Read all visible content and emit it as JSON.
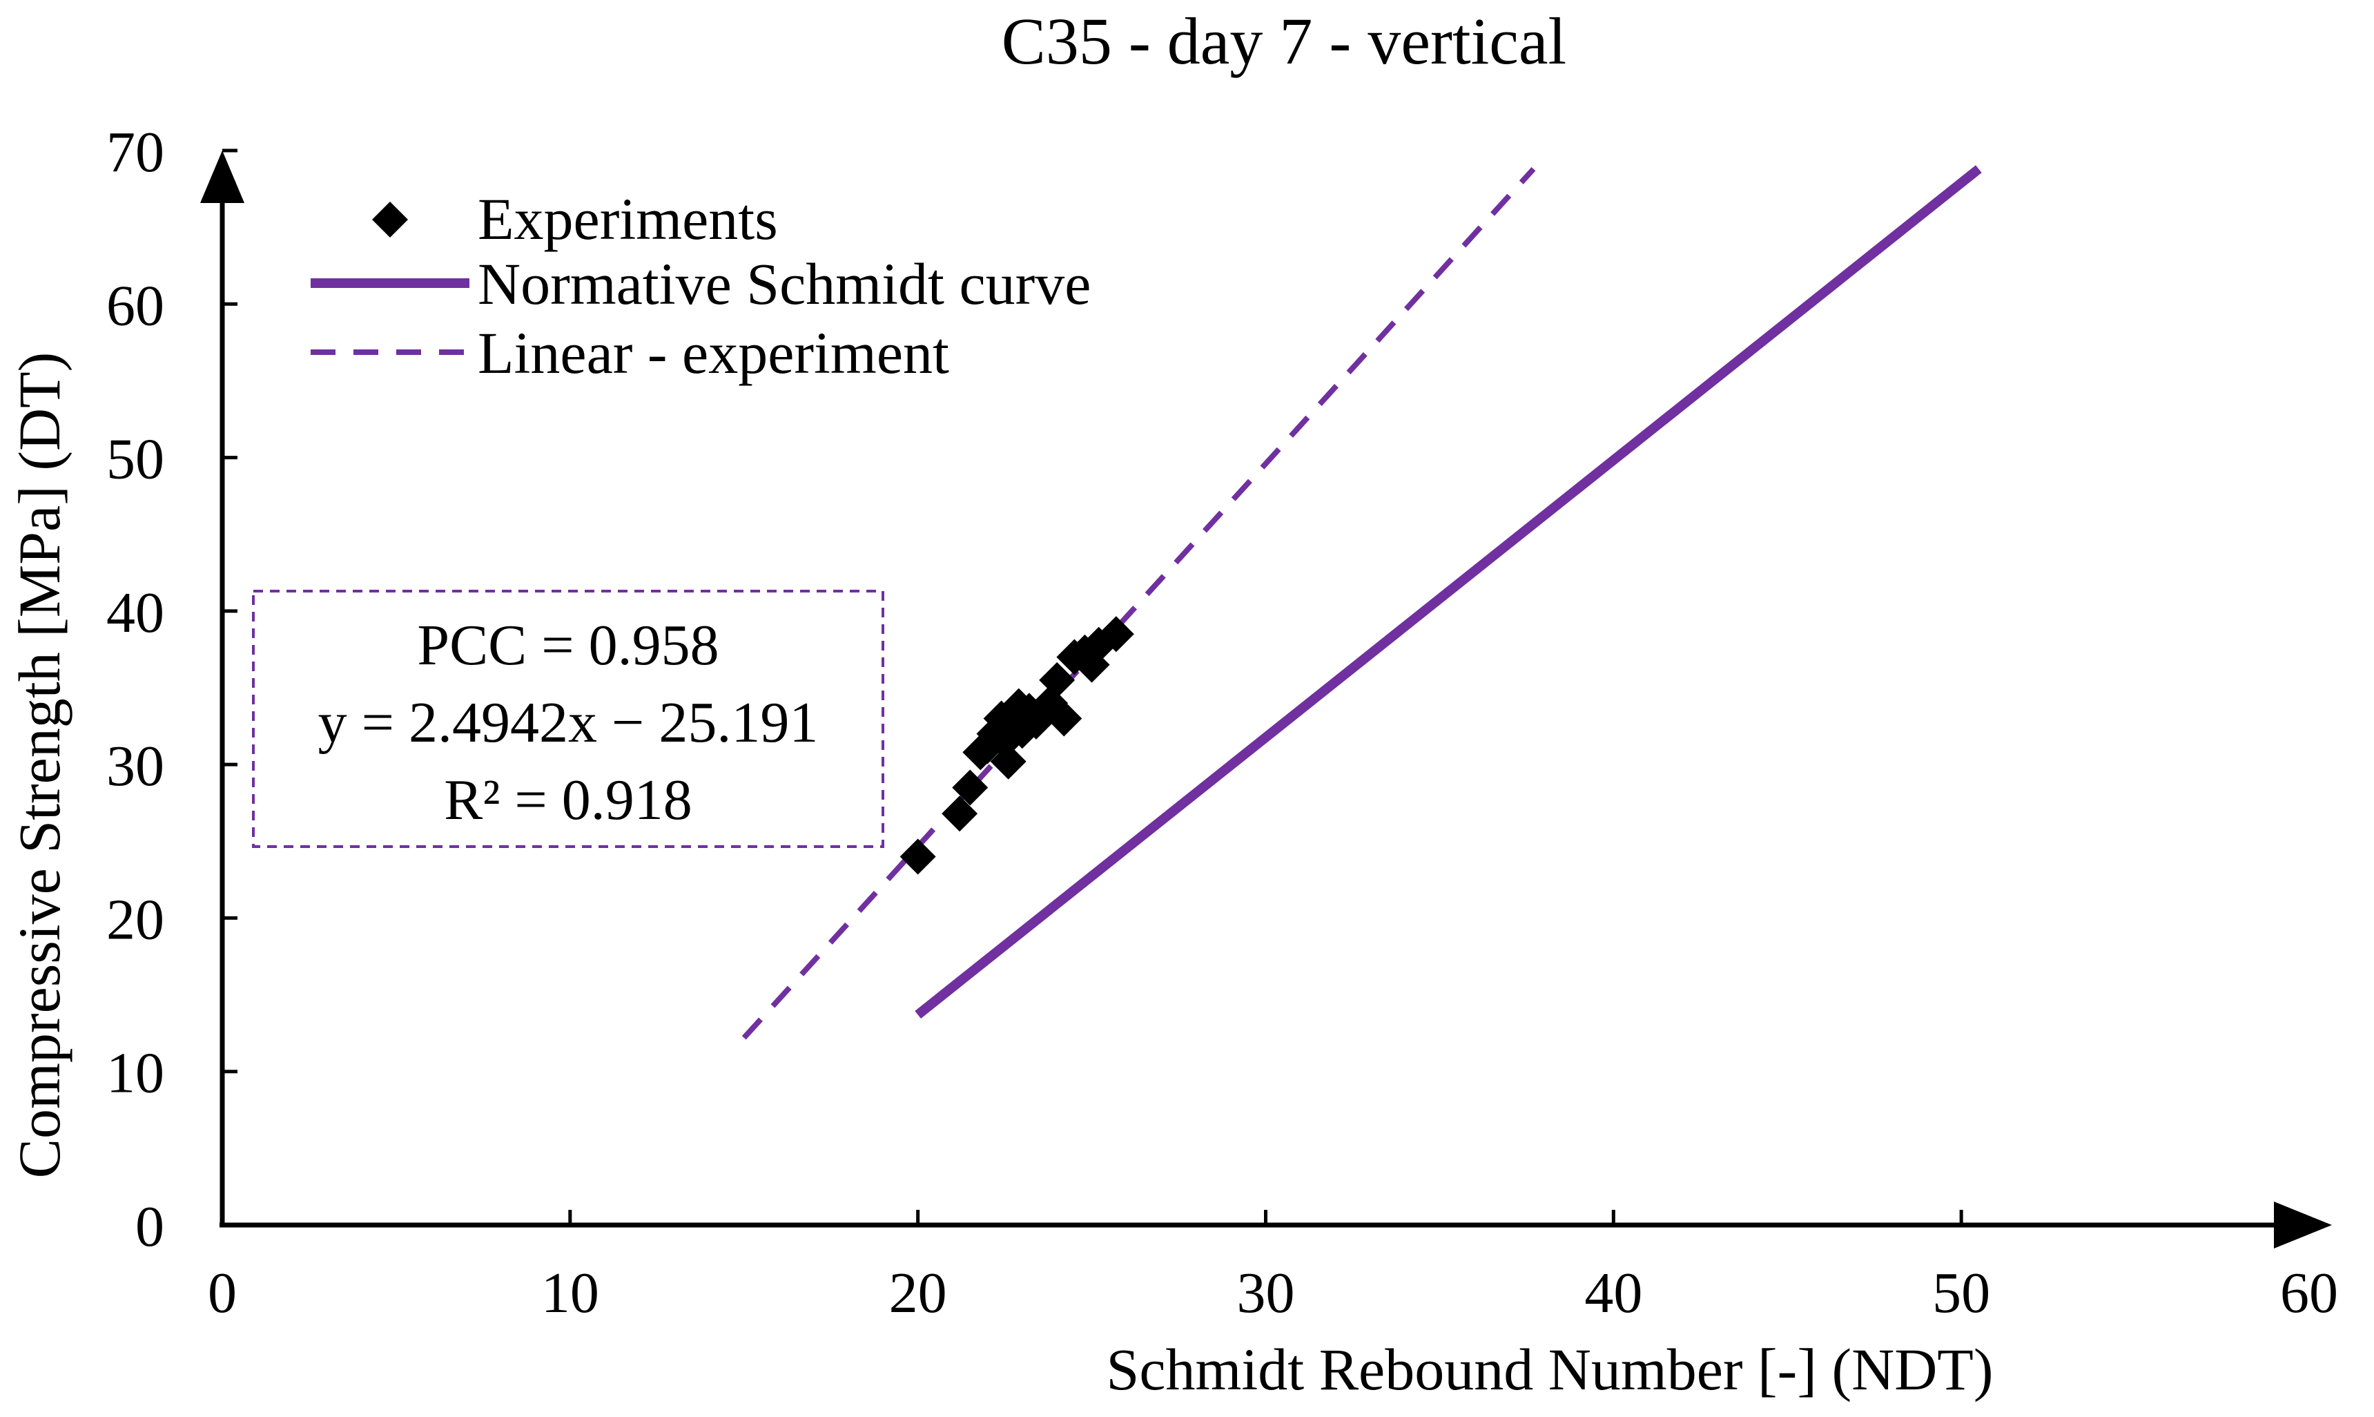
{
  "chart_data": {
    "type": "scatter",
    "title": "C35 - day 7 - vertical",
    "xlabel": "Schmidt Rebound Number [-] (NDT)",
    "ylabel": "Compressive Strength [MPa] (DT)",
    "xlim": [
      0,
      60
    ],
    "ylim": [
      0,
      70
    ],
    "xticks": [
      "0",
      "10",
      "20",
      "30",
      "40",
      "50",
      "60"
    ],
    "yticks": [
      "0",
      "10",
      "20",
      "30",
      "40",
      "50",
      "60",
      "70"
    ],
    "legend": {
      "placement": "top-left",
      "entries": [
        {
          "label": "Experiments",
          "symbol": "diamond"
        },
        {
          "label": "Normative Schmidt curve",
          "symbol": "solid-line"
        },
        {
          "label": "Linear - experiment",
          "symbol": "dashed-line"
        }
      ]
    },
    "series": [
      {
        "name": "Experiments",
        "kind": "scatter",
        "color": "#000000",
        "points": [
          [
            20.0,
            24.0
          ],
          [
            21.2,
            26.8
          ],
          [
            21.5,
            28.5
          ],
          [
            21.8,
            30.8
          ],
          [
            22.0,
            31.2
          ],
          [
            22.2,
            32.0
          ],
          [
            22.4,
            33.0
          ],
          [
            22.5,
            31.5
          ],
          [
            22.6,
            30.2
          ],
          [
            22.8,
            32.5
          ],
          [
            22.9,
            33.8
          ],
          [
            23.0,
            32.2
          ],
          [
            23.2,
            33.5
          ],
          [
            23.4,
            32.8
          ],
          [
            23.6,
            33.5
          ],
          [
            23.8,
            34.0
          ],
          [
            24.0,
            35.5
          ],
          [
            24.2,
            33.0
          ],
          [
            24.5,
            37.0
          ],
          [
            24.8,
            37.3
          ],
          [
            25.0,
            36.5
          ],
          [
            25.2,
            37.8
          ],
          [
            25.7,
            38.5
          ]
        ]
      },
      {
        "name": "Normative Schmidt curve",
        "kind": "line",
        "style": "solid",
        "color": "#7030A0",
        "points": [
          [
            20.0,
            13.7
          ],
          [
            50.5,
            68.8
          ]
        ]
      },
      {
        "name": "Linear - experiment",
        "kind": "line",
        "style": "dashed",
        "color": "#7030A0",
        "points": [
          [
            15.0,
            12.2
          ],
          [
            37.7,
            68.8
          ]
        ]
      }
    ],
    "annotation": {
      "lines": [
        "PCC = 0.958",
        "y = 2.4942x − 25.191",
        "R² = 0.918"
      ],
      "border_color": "#7030A0"
    }
  }
}
